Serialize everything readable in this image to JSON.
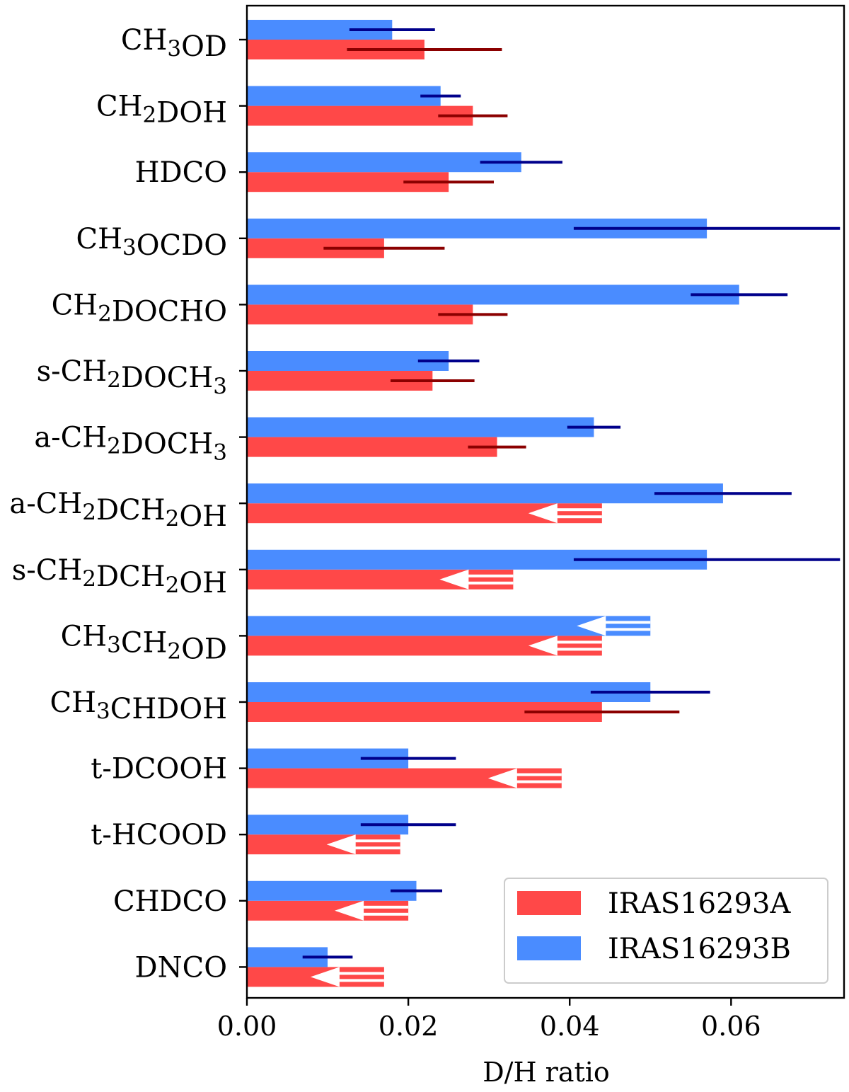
{
  "chart_data": {
    "type": "bar",
    "orientation": "horizontal",
    "xlabel": "D/H ratio",
    "xlim": [
      0,
      0.074
    ],
    "xticks": [
      "0.00",
      "0.02",
      "0.04",
      "0.06"
    ],
    "xtick_values": [
      0,
      0.02,
      0.04,
      0.06
    ],
    "grid": false,
    "legend_position": "bottom-right",
    "categories": [
      {
        "parts": [
          [
            "CH",
            "n"
          ],
          [
            "3",
            "sub"
          ],
          [
            "OD",
            "n"
          ]
        ]
      },
      {
        "parts": [
          [
            "CH",
            "n"
          ],
          [
            "2",
            "sub"
          ],
          [
            "DOH",
            "n"
          ]
        ]
      },
      {
        "parts": [
          [
            "HDCO",
            "n"
          ]
        ]
      },
      {
        "parts": [
          [
            "CH",
            "n"
          ],
          [
            "3",
            "sub"
          ],
          [
            "OCDO",
            "n"
          ]
        ]
      },
      {
        "parts": [
          [
            "CH",
            "n"
          ],
          [
            "2",
            "sub"
          ],
          [
            "DOCHO",
            "n"
          ]
        ]
      },
      {
        "parts": [
          [
            "s-CH",
            "n"
          ],
          [
            "2",
            "sub"
          ],
          [
            "DOCH",
            "n"
          ],
          [
            "3",
            "sub"
          ]
        ]
      },
      {
        "parts": [
          [
            "a-CH",
            "n"
          ],
          [
            "2",
            "sub"
          ],
          [
            "DOCH",
            "n"
          ],
          [
            "3",
            "sub"
          ]
        ]
      },
      {
        "parts": [
          [
            "a-CH",
            "n"
          ],
          [
            "2",
            "sub"
          ],
          [
            "DCH",
            "n"
          ],
          [
            "2",
            "sub"
          ],
          [
            "OH",
            "n"
          ]
        ]
      },
      {
        "parts": [
          [
            "s-CH",
            "n"
          ],
          [
            "2",
            "sub"
          ],
          [
            "DCH",
            "n"
          ],
          [
            "2",
            "sub"
          ],
          [
            "OH",
            "n"
          ]
        ]
      },
      {
        "parts": [
          [
            "CH",
            "n"
          ],
          [
            "3",
            "sub"
          ],
          [
            "CH",
            "n"
          ],
          [
            "2",
            "sub"
          ],
          [
            "OD",
            "n"
          ]
        ]
      },
      {
        "parts": [
          [
            "CH",
            "n"
          ],
          [
            "3",
            "sub"
          ],
          [
            "CHDOH",
            "n"
          ]
        ]
      },
      {
        "parts": [
          [
            "t-DCOOH",
            "n"
          ]
        ]
      },
      {
        "parts": [
          [
            "t-HCOOD",
            "n"
          ]
        ]
      },
      {
        "parts": [
          [
            "CHDCO",
            "n"
          ]
        ]
      },
      {
        "parts": [
          [
            "DNCO",
            "n"
          ]
        ]
      }
    ],
    "series": [
      {
        "name": "IRAS16293A",
        "color": "#ff4848",
        "error_color": "#8b0000",
        "values": [
          0.022,
          0.028,
          0.025,
          0.017,
          0.028,
          0.023,
          0.031,
          0.044,
          0.033,
          0.044,
          0.044,
          0.039,
          0.019,
          0.02,
          0.017
        ],
        "errors": [
          0.0096,
          0.0043,
          0.0056,
          0.0075,
          0.0043,
          0.0052,
          0.0036,
          null,
          null,
          null,
          0.0096,
          null,
          null,
          null,
          null
        ],
        "upper_limit": [
          false,
          false,
          false,
          false,
          false,
          false,
          false,
          true,
          true,
          true,
          false,
          true,
          true,
          true,
          true
        ]
      },
      {
        "name": "IRAS16293B",
        "color": "#4a8cff",
        "error_color": "#00008b",
        "values": [
          0.018,
          0.024,
          0.034,
          0.057,
          0.061,
          0.025,
          0.043,
          0.059,
          0.057,
          0.05,
          0.05,
          0.02,
          0.02,
          0.021,
          0.01
        ],
        "errors": [
          0.0053,
          0.0025,
          0.0051,
          0.0165,
          0.006,
          0.0038,
          0.0033,
          0.0085,
          0.0165,
          null,
          0.0074,
          0.0059,
          0.0059,
          0.0032,
          0.0031
        ],
        "upper_limit": [
          false,
          false,
          false,
          false,
          false,
          false,
          false,
          false,
          false,
          true,
          false,
          false,
          false,
          false,
          false
        ]
      }
    ]
  }
}
